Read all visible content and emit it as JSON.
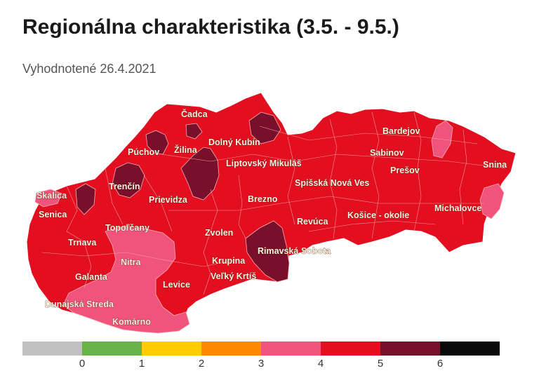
{
  "title": "Regionálna charakteristika (3.5. - 9.5.)",
  "subtitle": "Vyhodnotené 26.4.2021",
  "colors": {
    "level3": "#f0537c",
    "level4": "#e30e1f",
    "level5": "#780f2b",
    "border": "#f6b0b0"
  },
  "legend": {
    "colors": [
      "#c0c0c0",
      "#66b347",
      "#ffcc00",
      "#ff8800",
      "#f0537c",
      "#e30e1f",
      "#780f2b",
      "#0a0a0a"
    ],
    "ticks": [
      "0",
      "1",
      "2",
      "3",
      "4",
      "5",
      "6"
    ]
  },
  "regions": [
    {
      "name": "Čadca",
      "level": 4
    },
    {
      "name": "Púchov",
      "level": 4
    },
    {
      "name": "Žilina",
      "level": 4
    },
    {
      "name": "Dolný Kubín",
      "level": 4
    },
    {
      "name": "Trenčín",
      "level": 4
    },
    {
      "name": "Liptovský Mikuláš",
      "level": 4
    },
    {
      "name": "Skalica",
      "level": 3
    },
    {
      "name": "Senica",
      "level": 4
    },
    {
      "name": "Prievidza",
      "level": 4
    },
    {
      "name": "Topoľčany",
      "level": 3
    },
    {
      "name": "Trnava",
      "level": 4
    },
    {
      "name": "Nitra",
      "level": 3
    },
    {
      "name": "Galanta",
      "level": 4
    },
    {
      "name": "Dunajská Streda",
      "level": 3
    },
    {
      "name": "Komárno",
      "level": 3
    },
    {
      "name": "Levice",
      "level": 4
    },
    {
      "name": "Zvolen",
      "level": 4
    },
    {
      "name": "Krupina",
      "level": 4
    },
    {
      "name": "Veľký Krtíš",
      "level": 4
    },
    {
      "name": "Brezno",
      "level": 4
    },
    {
      "name": "Rimavská Sobota",
      "level": 5
    },
    {
      "name": "Revúca",
      "level": 4
    },
    {
      "name": "Spišská Nová Ves",
      "level": 4
    },
    {
      "name": "Košice - okolie",
      "level": 4
    },
    {
      "name": "Bardejov",
      "level": 4
    },
    {
      "name": "Sabinov",
      "level": 4
    },
    {
      "name": "Prešov",
      "level": 4
    },
    {
      "name": "Snina",
      "level": 4
    },
    {
      "name": "Michalovce",
      "level": 4
    }
  ]
}
